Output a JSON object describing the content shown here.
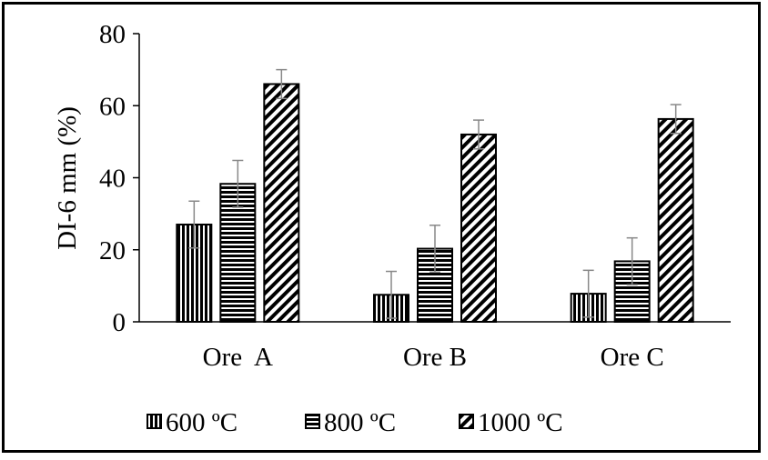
{
  "chart_data": {
    "type": "bar",
    "title": "",
    "xlabel": "",
    "ylabel": "DI-6 mm (%)",
    "ylim": [
      0,
      80
    ],
    "yticks": [
      0,
      20,
      40,
      60,
      80
    ],
    "ytick_labels": [
      "0",
      "20",
      "40",
      "60",
      "80"
    ],
    "categories": [
      "Ore  A",
      "Ore B",
      "Ore C"
    ],
    "legend_position": "bottom",
    "series": [
      {
        "name": "600 ºC",
        "pattern": "vertical-lines",
        "values": [
          27,
          7.5,
          7.8
        ],
        "errors": [
          6.5,
          6.5,
          6.5
        ]
      },
      {
        "name": "800 ºC",
        "pattern": "horizontal-lines",
        "values": [
          38.3,
          20.3,
          16.8
        ],
        "errors": [
          6.5,
          6.5,
          6.5
        ]
      },
      {
        "name": "1000 ºC",
        "pattern": "diagonal-lines",
        "values": [
          66,
          52,
          56.3
        ],
        "errors": [
          4,
          4,
          4
        ]
      }
    ]
  }
}
